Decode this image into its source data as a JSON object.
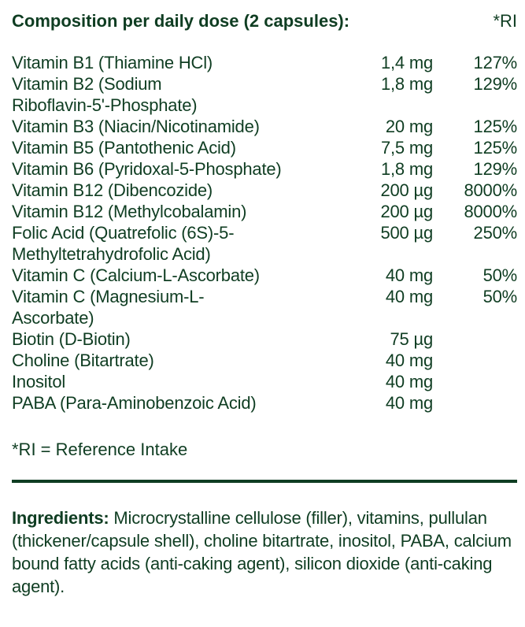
{
  "header": {
    "title": "Composition per daily dose (2 capsules):",
    "ri_label": "*RI"
  },
  "rows": [
    {
      "name": "Vitamin B1 (Thiamine HCl)",
      "amount": "1,4 mg",
      "ri": "127%"
    },
    {
      "name": "Vitamin B2 (Sodium\nRiboflavin-5'-Phosphate)",
      "amount": "1,8 mg",
      "ri": "129%"
    },
    {
      "name": "Vitamin B3 (Niacin/Nicotinamide)",
      "amount": "20 mg",
      "ri": "125%"
    },
    {
      "name": "Vitamin B5 (Pantothenic Acid)",
      "amount": "7,5 mg",
      "ri": "125%"
    },
    {
      "name": "Vitamin B6 (Pyridoxal-5-Phosphate)",
      "amount": "1,8 mg",
      "ri": "129%"
    },
    {
      "name": "Vitamin B12 (Dibencozide)",
      "amount": "200 µg",
      "ri": "8000%"
    },
    {
      "name": "Vitamin B12 (Methylcobalamin)",
      "amount": "200 µg",
      "ri": "8000%"
    },
    {
      "name": "Folic Acid (Quatrefolic (6S)-5-\nMethyltetrahydrofolic Acid)",
      "amount": "500 µg",
      "ri": "250%"
    },
    {
      "name": "Vitamin C (Calcium-L-Ascorbate)",
      "amount": "40 mg",
      "ri": "50%"
    },
    {
      "name": "Vitamin C (Magnesium-L-\nAscorbate)",
      "amount": "40 mg",
      "ri": "50%"
    },
    {
      "name": "Biotin (D-Biotin)",
      "amount": "75 µg",
      "ri": ""
    },
    {
      "name": "Choline (Bitartrate)",
      "amount": "40 mg",
      "ri": ""
    },
    {
      "name": "Inositol",
      "amount": "40 mg",
      "ri": ""
    },
    {
      "name": "PABA (Para-Aminobenzoic Acid)",
      "amount": "40 mg",
      "ri": ""
    }
  ],
  "footnote": "*RI = Reference Intake",
  "ingredients": {
    "label": "Ingredients:",
    "text": " Microcrystalline cellulose (filler), vitamins, pullulan (thickener/capsule shell), choline bitartrate, inositol, PABA, calcium bound fatty acids (anti-caking agent), silicon dioxide (anti-caking agent)."
  },
  "colors": {
    "text": "#0f3d22"
  }
}
